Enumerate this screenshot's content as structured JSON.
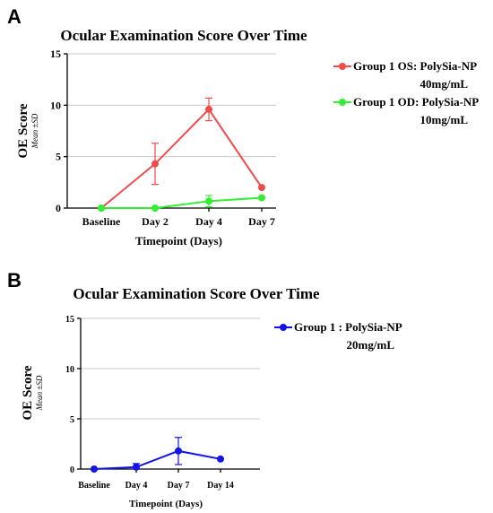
{
  "panels": {
    "a": "A",
    "b": "B"
  },
  "chart_data": [
    {
      "type": "line",
      "title": "Ocular Examination Score Over Time",
      "xlabel": "Timepoint (Days)",
      "ylabel": "OE Score",
      "ylabel_sub": "Mean ±SD",
      "categories": [
        "Baseline",
        "Day 2",
        "Day 4",
        "Day 7"
      ],
      "ylim": [
        0,
        15
      ],
      "yticks": [
        0,
        5,
        10,
        15
      ],
      "grid": true,
      "legend_position": "right",
      "series": [
        {
          "name": "Group 1 OS: PolySia-NP",
          "name_line2": "40mg/mL",
          "color": "#f04a4a",
          "values": [
            0,
            4.3,
            9.6,
            2.0
          ],
          "errors": [
            0,
            2.0,
            1.1,
            0
          ]
        },
        {
          "name": "Group 1 OD: PolySia-NP",
          "name_line2": "10mg/mL",
          "color": "#33ee33",
          "values": [
            0,
            0,
            0.67,
            1.0
          ],
          "errors": [
            0,
            0,
            0.55,
            0
          ]
        }
      ]
    },
    {
      "type": "line",
      "title": "Ocular Examination Score Over Time",
      "xlabel": "Timepoint (Days)",
      "ylabel": "OE Score",
      "ylabel_sub": "Mean ±SD",
      "categories": [
        "Baseline",
        "Day 4",
        "Day 7",
        "Day 14"
      ],
      "ylim": [
        0,
        15
      ],
      "yticks": [
        0,
        5,
        10,
        15
      ],
      "grid": true,
      "legend_position": "right",
      "series": [
        {
          "name": "Group 1 : PolySia-NP",
          "name_line2": "20mg/mL",
          "color": "#1414e6",
          "values": [
            0,
            0.2,
            1.8,
            1.0
          ],
          "errors": [
            0,
            0.35,
            1.35,
            0
          ]
        }
      ]
    }
  ]
}
